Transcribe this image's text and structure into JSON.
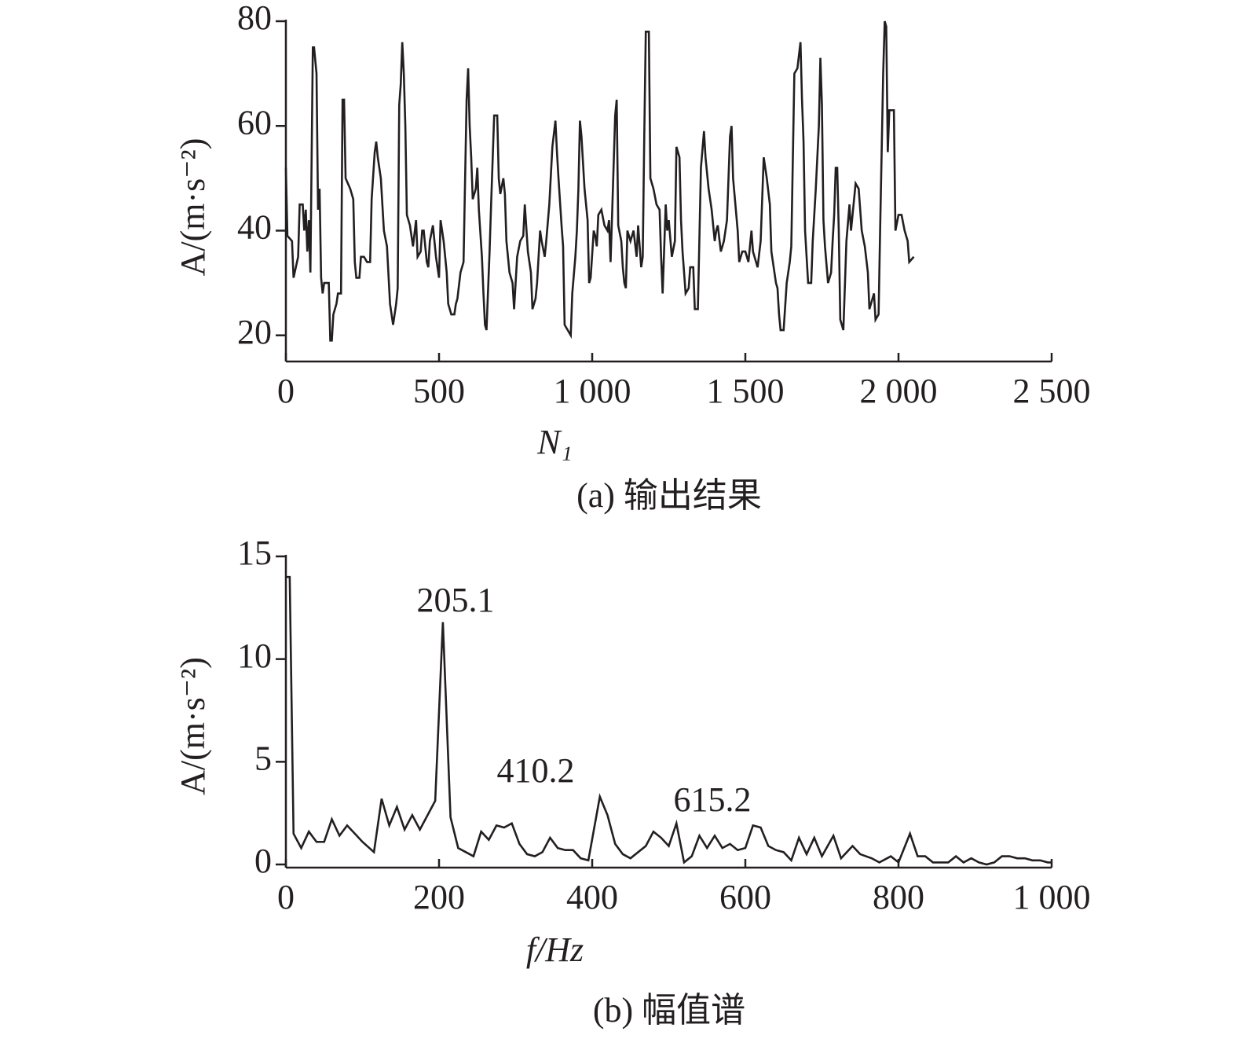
{
  "chart_data": [
    {
      "type": "line",
      "xlabel": "N₁",
      "ylabel": "A/(m·s⁻²)",
      "caption": "(a) 输出结果",
      "xlim": [
        0,
        2500
      ],
      "ylim": [
        15,
        80
      ],
      "xticks": [
        0,
        500,
        {
          "value": 1000,
          "label": "1 000"
        },
        {
          "value": 1500,
          "label": "1 500"
        },
        {
          "value": 2000,
          "label": "2 000"
        },
        {
          "value": 2500,
          "label": "2 500"
        }
      ],
      "yticks": [
        20,
        40,
        60,
        80
      ],
      "x": [
        0,
        5,
        20,
        25,
        40,
        45,
        55,
        60,
        65,
        70,
        75,
        80,
        88,
        92,
        100,
        105,
        110,
        115,
        120,
        125,
        140,
        145,
        150,
        155,
        165,
        170,
        180,
        185,
        190,
        195,
        210,
        220,
        225,
        230,
        240,
        245,
        255,
        265,
        275,
        280,
        290,
        295,
        300,
        310,
        320,
        330,
        340,
        350,
        360,
        365,
        370,
        375,
        380,
        385,
        390,
        395,
        405,
        415,
        425,
        430,
        440,
        445,
        450,
        460,
        465,
        470,
        480,
        485,
        490,
        495,
        500,
        505,
        515,
        525,
        530,
        540,
        550,
        555,
        560,
        570,
        580,
        590,
        595,
        600,
        605,
        610,
        620,
        625,
        630,
        640,
        645,
        650,
        655,
        665,
        670,
        680,
        690,
        695,
        700,
        710,
        715,
        720,
        730,
        740,
        745,
        755,
        765,
        775,
        780,
        790,
        800,
        805,
        815,
        820,
        830,
        835,
        845,
        850,
        860,
        870,
        880,
        885,
        890,
        900,
        905,
        910,
        920,
        930,
        935,
        945,
        950,
        955,
        960,
        965,
        975,
        985,
        990,
        995,
        1005,
        1010,
        1015,
        1020,
        1030,
        1040,
        1050,
        1055,
        1060,
        1065,
        1075,
        1080,
        1085,
        1095,
        1100,
        1105,
        1110,
        1115,
        1125,
        1135,
        1145,
        1150,
        1160,
        1165,
        1170,
        1175,
        1185,
        1190,
        1200,
        1210,
        1220,
        1225,
        1230,
        1240,
        1245,
        1250,
        1260,
        1270,
        1275,
        1285,
        1290,
        1295,
        1305,
        1315,
        1320,
        1330,
        1335,
        1345,
        1355,
        1365,
        1370,
        1380,
        1390,
        1400,
        1405,
        1410,
        1420,
        1430,
        1440,
        1445,
        1450,
        1455,
        1460,
        1475,
        1480,
        1490,
        1500,
        1510,
        1520,
        1525,
        1535,
        1540,
        1550,
        1560,
        1570,
        1580,
        1585,
        1590,
        1600,
        1605,
        1610,
        1615,
        1625,
        1635,
        1645,
        1650,
        1660,
        1670,
        1680,
        1685,
        1690,
        1695,
        1700,
        1705,
        1715,
        1720,
        1730,
        1740,
        1745,
        1750,
        1755,
        1760,
        1770,
        1780,
        1785,
        1790,
        1795,
        1800,
        1805,
        1810,
        1820,
        1830,
        1840,
        1845,
        1855,
        1860,
        1870,
        1880,
        1890,
        1900,
        1905,
        1915,
        1920,
        1925,
        1935,
        1940,
        1950,
        1955,
        1960,
        1965,
        1970,
        1985,
        1990,
        2000,
        2010,
        2020,
        2030,
        2035,
        2050
      ],
      "series": [
        {
          "color": "#231f20",
          "values": [
            52,
            39,
            38,
            31,
            35,
            45,
            45,
            40,
            44,
            36,
            42,
            32,
            75,
            75,
            70,
            44,
            48,
            31,
            28,
            30,
            30,
            19,
            19,
            24,
            26,
            28,
            28,
            65,
            65,
            50,
            48,
            46,
            34,
            31,
            31,
            35,
            35,
            34,
            34,
            46,
            55,
            57,
            54,
            50,
            40,
            37,
            26,
            22,
            26,
            29,
            64,
            68,
            76,
            70,
            60,
            43,
            41,
            37,
            42,
            35,
            36,
            40,
            40,
            34,
            33,
            38,
            41,
            38,
            35,
            33,
            31,
            42,
            38,
            32,
            26,
            24,
            24,
            26,
            27,
            32,
            34,
            65,
            71,
            60,
            54,
            46,
            48,
            52,
            44,
            35,
            28,
            22,
            21,
            36,
            45,
            62,
            62,
            50,
            47,
            50,
            47,
            38,
            32,
            30,
            25,
            35,
            38,
            39,
            45,
            36,
            32,
            25,
            27,
            30,
            40,
            38,
            35,
            38,
            45,
            56,
            61,
            55,
            50,
            41,
            37,
            22,
            21,
            20,
            28,
            35,
            40,
            48,
            61,
            58,
            48,
            42,
            30,
            31,
            40,
            39,
            37,
            43,
            44,
            41,
            40,
            42,
            34,
            43,
            62,
            65,
            41,
            38,
            33,
            30,
            29,
            40,
            38,
            40,
            35,
            41,
            33,
            35,
            58,
            78,
            78,
            50,
            48,
            45,
            44,
            35,
            28,
            45,
            40,
            42,
            35,
            38,
            56,
            54,
            42,
            36,
            28,
            29,
            33,
            33,
            25,
            25,
            52,
            59,
            54,
            48,
            44,
            38,
            40,
            41,
            36,
            38,
            42,
            50,
            58,
            60,
            50,
            40,
            34,
            36,
            36,
            34,
            40,
            36,
            34,
            33,
            38,
            54,
            50,
            45,
            36,
            34,
            30,
            29,
            24,
            21,
            21,
            30,
            34,
            37,
            70,
            71,
            76,
            65,
            57,
            40,
            35,
            30,
            30,
            38,
            48,
            60,
            73,
            64,
            42,
            37,
            30,
            32,
            38,
            43,
            52,
            52,
            40,
            23,
            21,
            38,
            45,
            40,
            46,
            49,
            48,
            40,
            37,
            32,
            25,
            27,
            28,
            23,
            24,
            40,
            70,
            80,
            79,
            55,
            63,
            63,
            40,
            43,
            43,
            40,
            38,
            34,
            35
          ]
        }
      ]
    },
    {
      "type": "line",
      "xlabel": "f/Hz",
      "ylabel": "A/(m·s⁻²)",
      "caption": "(b) 幅值谱",
      "annotations": [
        "205.1",
        "410.2",
        "615.2"
      ],
      "xlim": [
        0,
        1000
      ],
      "ylim": [
        0,
        15
      ],
      "xticks": [
        0,
        200,
        400,
        600,
        800,
        {
          "value": 1000,
          "label": "1 000"
        }
      ],
      "yticks": [
        0,
        5,
        10,
        15
      ],
      "x": [
        0,
        5,
        10,
        20,
        30,
        40,
        50,
        60,
        70,
        80,
        90,
        100,
        115,
        125,
        135,
        145,
        155,
        165,
        175,
        195,
        205,
        215,
        225,
        235,
        245,
        255,
        265,
        275,
        285,
        295,
        305,
        315,
        325,
        335,
        345,
        355,
        365,
        375,
        385,
        395,
        410,
        420,
        430,
        440,
        450,
        460,
        470,
        480,
        490,
        500,
        510,
        520,
        530,
        540,
        550,
        560,
        570,
        580,
        590,
        600,
        610,
        620,
        630,
        640,
        650,
        660,
        670,
        680,
        690,
        700,
        715,
        725,
        740,
        750,
        765,
        775,
        790,
        800,
        815,
        825,
        835,
        845,
        855,
        865,
        875,
        885,
        895,
        905,
        915,
        925,
        935,
        945,
        955,
        965,
        975,
        985,
        995,
        1000
      ],
      "series": [
        {
          "color": "#231f20",
          "values": [
            14,
            14,
            1.5,
            0.8,
            1.6,
            1.1,
            1.1,
            2.2,
            1.4,
            1.9,
            1.5,
            1.1,
            0.6,
            3.2,
            1.9,
            2.8,
            1.7,
            2.4,
            1.7,
            3.1,
            11.8,
            2.3,
            0.8,
            0.6,
            0.4,
            1.6,
            1.2,
            1.9,
            1.8,
            2.0,
            1.0,
            0.5,
            0.4,
            0.6,
            1.3,
            0.8,
            0.7,
            0.7,
            0.3,
            0.2,
            3.3,
            2.4,
            1.0,
            0.5,
            0.3,
            0.6,
            0.9,
            1.6,
            1.3,
            0.9,
            2.0,
            0.1,
            0.4,
            1.4,
            0.8,
            1.4,
            0.8,
            1.0,
            0.7,
            0.8,
            1.9,
            1.8,
            0.9,
            0.7,
            0.6,
            0.2,
            1.3,
            0.5,
            1.3,
            0.4,
            1.4,
            0.3,
            0.9,
            0.5,
            0.3,
            0.1,
            0.4,
            0.1,
            1.5,
            0.4,
            0.4,
            0.1,
            0.1,
            0.1,
            0.4,
            0.1,
            0.3,
            0.1,
            0,
            0.1,
            0.4,
            0.4,
            0.3,
            0.3,
            0.2,
            0.2,
            0.1,
            0.1
          ]
        }
      ]
    }
  ]
}
